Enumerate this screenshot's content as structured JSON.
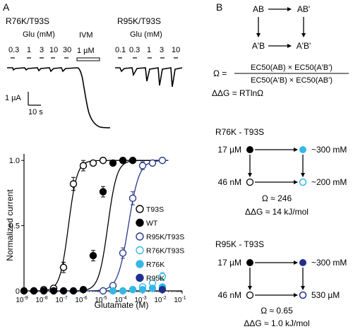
{
  "panel_a": {
    "label": "A",
    "traces_left": {
      "title": "R76K/T93S",
      "glu_label": "Glu (mM)",
      "concentrations": [
        "0.3",
        "1",
        "3",
        "10",
        "30"
      ],
      "ivm_label": "IVM",
      "ivm_conc": "1 µM",
      "scale_current": "1 µA",
      "scale_time": "10 s"
    },
    "traces_right": {
      "title": "R95K/T93S",
      "glu_label": "Glu (mM)",
      "concentrations": [
        "0.1",
        "0.3",
        "1",
        "3",
        "10"
      ]
    },
    "chart_data": {
      "type": "scatter",
      "xlabel": "Glutamate (M)",
      "ylabel": "Normalized current",
      "x_log": true,
      "xlim_exp": [
        -9,
        -1
      ],
      "ylim": [
        0,
        1.05
      ],
      "x_tick_labels": [
        "10-9",
        "10-8",
        "10-7",
        "10-6",
        "10-5",
        "10-4",
        "10-3",
        "10-2",
        "10-1"
      ],
      "y_tick_labels": [
        "0",
        "0.5",
        "1.0"
      ],
      "legend_position": "right",
      "series": [
        {
          "name": "T93S",
          "color": "#000000",
          "filled": false,
          "x_exp": [
            -8.5,
            -8,
            -7.5,
            -7,
            -6.5,
            -6,
            -5.5,
            -5
          ],
          "y": [
            0.0,
            0.01,
            0.02,
            0.18,
            0.82,
            0.96,
            0.98,
            1.0
          ]
        },
        {
          "name": "WT",
          "color": "#000000",
          "filled": true,
          "x_exp": [
            -9,
            -8.5,
            -8,
            -7.5,
            -7,
            -6.5,
            -6,
            -5.5,
            -5,
            -4.5,
            -4,
            -3.5
          ],
          "y": [
            0.0,
            0.0,
            0.0,
            0.0,
            0.0,
            0.0,
            0.01,
            0.27,
            0.76,
            0.98,
            1.0,
            1.0
          ]
        },
        {
          "name": "R95K/T93S",
          "color": "#2a3a8c",
          "filled": false,
          "x_exp": [
            -5,
            -4.5,
            -4,
            -3.5,
            -3,
            -2.5,
            -2
          ],
          "y": [
            0.0,
            0.04,
            0.29,
            0.71,
            0.96,
            0.98,
            1.0
          ]
        },
        {
          "name": "R76K/T93S",
          "color": "#35b8e8",
          "filled": false,
          "x_exp": [
            -3.5,
            -3,
            -2.5,
            -2
          ],
          "y": [
            0.01,
            0.03,
            0.06,
            0.11
          ]
        },
        {
          "name": "R76K",
          "color": "#35b8e8",
          "filled": true,
          "x_exp": [
            -4.5,
            -4,
            -3.5,
            -3,
            -2.5,
            -2
          ],
          "y": [
            0.0,
            0.0,
            0.01,
            0.01,
            0.02,
            0.03
          ]
        },
        {
          "name": "R95K",
          "color": "#1f2f8c",
          "filled": true,
          "x_exp": [
            -2
          ],
          "y": [
            0.01
          ]
        }
      ]
    }
  },
  "panel_b": {
    "label": "B",
    "cycle": {
      "ab": "AB",
      "ab_prime": "AB'",
      "a_prime_b": "A'B",
      "a_prime_b_prime": "A'B'"
    },
    "equation": {
      "omega": "Ω =",
      "numerator": "EC50(AB) × EC50(A'B')",
      "denominator": "EC50(A'B) × EC50(AB')",
      "ddg": "ΔΔG = RTlnΩ"
    },
    "cycle_r76k": {
      "title": "R76K - T93S",
      "top_left": "17 µM",
      "top_right": "~300 mM",
      "bottom_left": "46 nM",
      "bottom_right": "~200 mM",
      "omega": "Ω ≈ 246",
      "ddg": "ΔΔG ≈ 14 kJ/mol"
    },
    "cycle_r95k": {
      "title": "R95K - T93S",
      "top_left": "17 µM",
      "top_right": "~300 mM",
      "bottom_left": "46 nM",
      "bottom_right": "530 µM",
      "omega": "Ω ≈ 0.65",
      "ddg": "ΔΔG ≈ 1.0 kJ/mol"
    }
  }
}
